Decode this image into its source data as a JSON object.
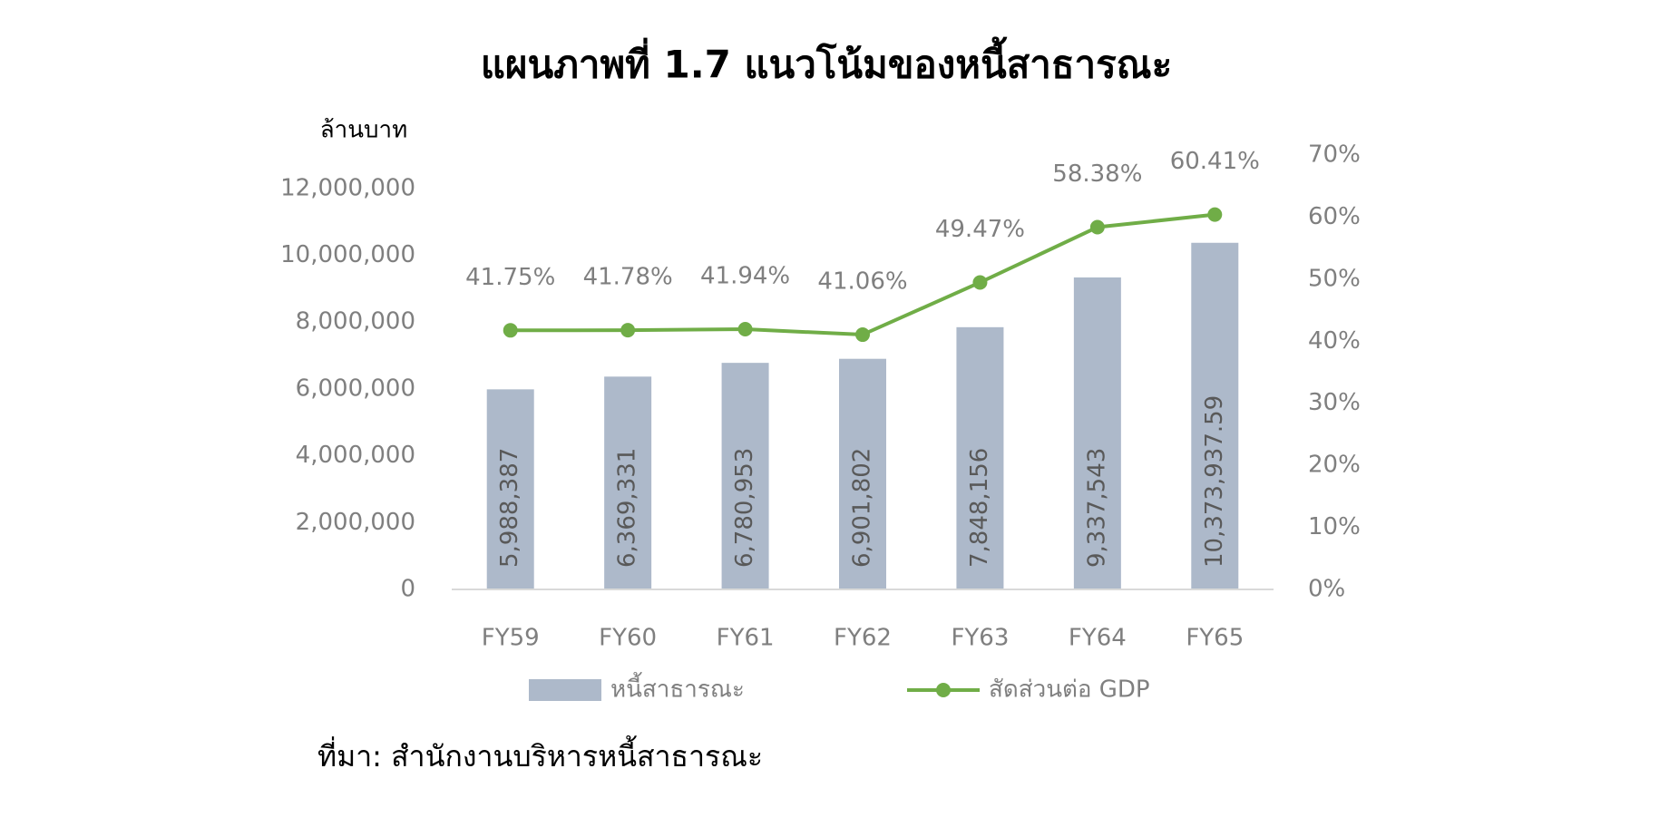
{
  "chart_data": {
    "type": "bar",
    "title": "แผนภาพที่ 1.7 แนวโน้มของหนี้สาธารณะ",
    "y_label": "ล้านบาท",
    "source": "ที่มา: สำนักงานบริหารหนี้สาธารณะ",
    "categories": [
      "FY59",
      "FY60",
      "FY61",
      "FY62",
      "FY63",
      "FY64",
      "FY65"
    ],
    "series": [
      {
        "name": "หนี้สาธารณะ",
        "type": "bar",
        "color": "#adb9ca",
        "values": [
          5988387,
          6369331,
          6780953,
          6901802,
          7848156,
          9337543,
          10373937.59
        ],
        "value_labels": [
          "5,988,387",
          "6,369,331",
          "6,780,953",
          "6,901,802",
          "7,848,156",
          "9,337,543",
          "10,373,937.59"
        ]
      },
      {
        "name": "สัดส่วนต่อ GDP",
        "type": "line",
        "axis": "y2",
        "color": "#70ad47",
        "values": [
          41.75,
          41.78,
          41.94,
          41.06,
          49.47,
          58.38,
          60.41
        ],
        "value_labels": [
          "41.75%",
          "41.78%",
          "41.94%",
          "41.06%",
          "49.47%",
          "58.38%",
          "60.41%"
        ]
      }
    ],
    "ylim": [
      0,
      13000000
    ],
    "yticks": [
      {
        "value": 0,
        "label": "0"
      },
      {
        "value": 2000000,
        "label": "2,000,000"
      },
      {
        "value": 4000000,
        "label": "4,000,000"
      },
      {
        "value": 6000000,
        "label": "6,000,000"
      },
      {
        "value": 8000000,
        "label": "8,000,000"
      },
      {
        "value": 10000000,
        "label": "10,000,000"
      },
      {
        "value": 12000000,
        "label": "12,000,000"
      }
    ],
    "y2lim": [
      0,
      70
    ],
    "y2ticks": [
      {
        "value": 0,
        "label": "0%"
      },
      {
        "value": 10,
        "label": "10%"
      },
      {
        "value": 20,
        "label": "20%"
      },
      {
        "value": 30,
        "label": "30%"
      },
      {
        "value": 40,
        "label": "40%"
      },
      {
        "value": 50,
        "label": "50%"
      },
      {
        "value": 60,
        "label": "60%"
      },
      {
        "value": 70,
        "label": "70%"
      }
    ],
    "grid": false
  }
}
